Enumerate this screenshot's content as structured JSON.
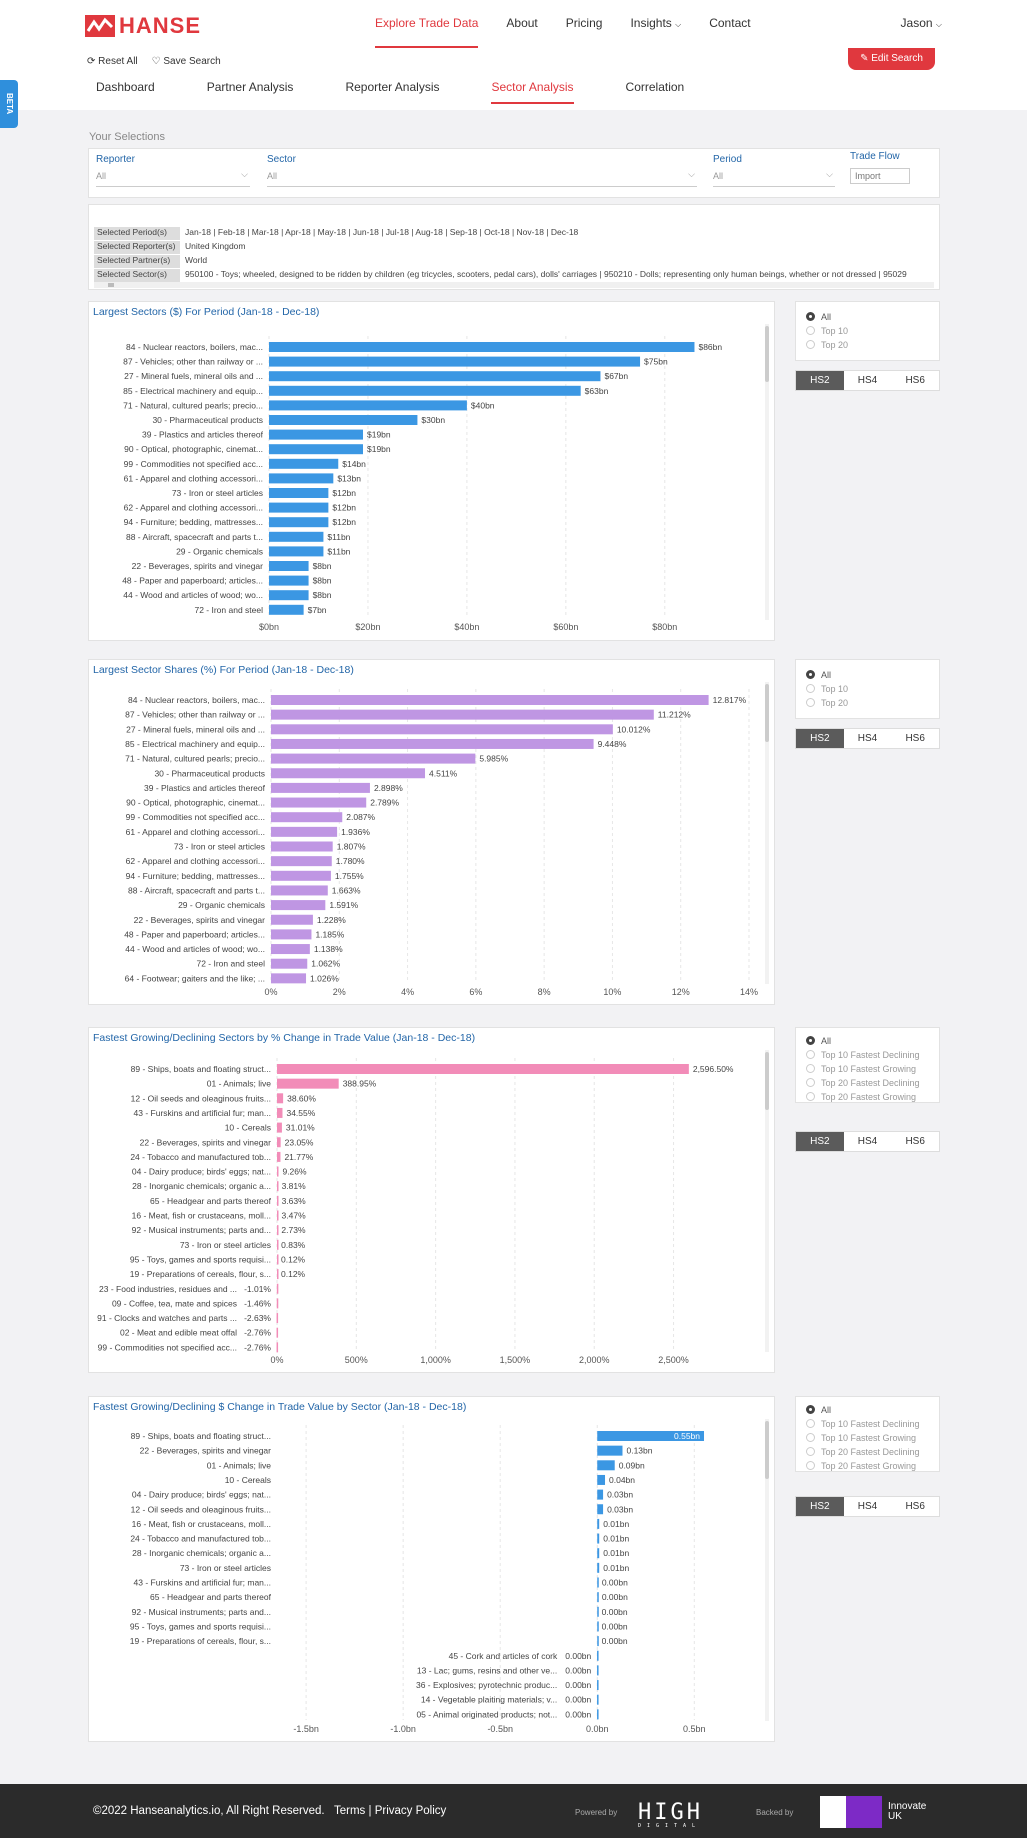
{
  "brand": {
    "name": "HANSE"
  },
  "nav": {
    "items": [
      "Explore Trade Data",
      "About",
      "Pricing",
      "Insights",
      "Contact"
    ],
    "user": "Jason"
  },
  "actions": {
    "reset": "Reset All",
    "save": "Save Search",
    "edit": "Edit Search"
  },
  "tabs": [
    "Dashboard",
    "Partner Analysis",
    "Reporter Analysis",
    "Sector Analysis",
    "Correlation"
  ],
  "beta": "BETA",
  "selections": {
    "title": "Your Selections",
    "reporter_label": "Reporter",
    "reporter_value": "All",
    "sector_label": "Sector",
    "sector_value": "All",
    "period_label": "Period",
    "period_value": "All",
    "flow_label": "Trade Flow",
    "flow_value": "Import"
  },
  "summary": [
    {
      "key": "Selected Period(s)",
      "value": "Jan-18  |  Feb-18  |  Mar-18  |  Apr-18  |  May-18  |  Jun-18  |  Jul-18  |  Aug-18  |  Sep-18  |  Oct-18  |  Nov-18  |  Dec-18"
    },
    {
      "key": "Selected Reporter(s)",
      "value": "United Kingdom"
    },
    {
      "key": "Selected Partner(s)",
      "value": "World"
    },
    {
      "key": "Selected Sector(s)",
      "value": "950100 - Toys; wheeled, designed to be ridden by children (eg tricycles, scooters, pedal cars), dolls' carriages  |  950210 - Dolls; representing only human beings, whether or not dressed  |  95029"
    }
  ],
  "radio_sets": {
    "top": [
      "All",
      "Top 10",
      "Top 20"
    ],
    "growth": [
      "All",
      "Top 10 Fastest Declining",
      "Top 10 Fastest Growing",
      "Top 20 Fastest Declining",
      "Top 20 Fastest Growing"
    ]
  },
  "hs": [
    "HS2",
    "HS4",
    "HS6"
  ],
  "chart_data": [
    {
      "type": "bar",
      "title": "Largest Sectors ($) For Period (Jan-18 - Dec-18)",
      "color": "#3b97e3",
      "xlim": [
        0,
        95
      ],
      "ticks": [
        0,
        20,
        40,
        60,
        80
      ],
      "tick_labels": [
        "$0bn",
        "$20bn",
        "$40bn",
        "$60bn",
        "$80bn"
      ],
      "categories": [
        "84 - Nuclear reactors, boilers, mac...",
        "87 - Vehicles; other than railway or ...",
        "27 - Mineral fuels, mineral oils and ...",
        "85 - Electrical machinery and equip...",
        "71 - Natural, cultured pearls; precio...",
        "30 - Pharmaceutical products",
        "39 - Plastics and articles thereof",
        "90 - Optical, photographic, cinemat...",
        "99 - Commodities not specified acc...",
        "61 - Apparel and clothing accessori...",
        "73 - Iron or steel articles",
        "62 - Apparel and clothing accessori...",
        "94 - Furniture; bedding, mattresses...",
        "88 - Aircraft, spacecraft and parts t...",
        "29 - Organic chemicals",
        "22 - Beverages, spirits and vinegar",
        "48 - Paper and paperboard; articles...",
        "44 - Wood and articles of wood; wo...",
        "72 - Iron and steel"
      ],
      "values": [
        86,
        75,
        67,
        63,
        40,
        30,
        19,
        19,
        14,
        13,
        12,
        12,
        12,
        11,
        11,
        8,
        8,
        8,
        7
      ],
      "value_labels": [
        "$86bn",
        "$75bn",
        "$67bn",
        "$63bn",
        "$40bn",
        "$30bn",
        "$19bn",
        "$19bn",
        "$14bn",
        "$13bn",
        "$12bn",
        "$12bn",
        "$12bn",
        "$11bn",
        "$11bn",
        "$8bn",
        "$8bn",
        "$8bn",
        "$7bn"
      ]
    },
    {
      "type": "bar",
      "title": "Largest Sector Shares (%) For Period (Jan-18 - Dec-18)",
      "color": "#bf96e3",
      "xlim": [
        0,
        14
      ],
      "ticks": [
        0,
        2,
        4,
        6,
        8,
        10,
        12,
        14
      ],
      "tick_labels": [
        "0%",
        "2%",
        "4%",
        "6%",
        "8%",
        "10%",
        "12%",
        "14%"
      ],
      "categories": [
        "84 - Nuclear reactors, boilers, mac...",
        "87 - Vehicles; other than railway or ...",
        "27 - Mineral fuels, mineral oils and ...",
        "85 - Electrical machinery and equip...",
        "71 - Natural, cultured pearls; precio...",
        "30 - Pharmaceutical products",
        "39 - Plastics and articles thereof",
        "90 - Optical, photographic, cinemat...",
        "99 - Commodities not specified acc...",
        "61 - Apparel and clothing accessori...",
        "73 - Iron or steel articles",
        "62 - Apparel and clothing accessori...",
        "94 - Furniture; bedding, mattresses...",
        "88 - Aircraft, spacecraft and parts t...",
        "29 - Organic chemicals",
        "22 - Beverages, spirits and vinegar",
        "48 - Paper and paperboard; articles...",
        "44 - Wood and articles of wood; wo...",
        "72 - Iron and steel",
        "64 - Footwear; gaiters and the like; ..."
      ],
      "values": [
        12.817,
        11.212,
        10.012,
        9.448,
        5.985,
        4.511,
        2.898,
        2.789,
        2.087,
        1.936,
        1.807,
        1.78,
        1.755,
        1.663,
        1.591,
        1.228,
        1.185,
        1.138,
        1.062,
        1.026
      ],
      "value_labels": [
        "12.817%",
        "11.212%",
        "10.012%",
        "9.448%",
        "5.985%",
        "4.511%",
        "2.898%",
        "2.789%",
        "2.087%",
        "1.936%",
        "1.807%",
        "1.780%",
        "1.755%",
        "1.663%",
        "1.591%",
        "1.228%",
        "1.185%",
        "1.138%",
        "1.062%",
        "1.026%"
      ]
    },
    {
      "type": "bar",
      "title": "Fastest Growing/Declining Sectors by % Change in Trade Value (Jan-18 - Dec-18)",
      "color": "#f28cb8",
      "xlim": [
        0,
        2900
      ],
      "ticks": [
        0,
        500,
        1000,
        1500,
        2000,
        2500
      ],
      "tick_labels": [
        "0%",
        "500%",
        "1,000%",
        "1,500%",
        "2,000%",
        "2,500%"
      ],
      "categories": [
        "89 - Ships, boats and floating struct...",
        "01 - Animals; live",
        "12 - Oil seeds and oleaginous fruits...",
        "43 - Furskins and artificial fur; man...",
        "10 - Cereals",
        "22 - Beverages, spirits and vinegar",
        "24 - Tobacco and manufactured tob...",
        "04 - Dairy produce; birds' eggs; nat...",
        "28 - Inorganic chemicals; organic a...",
        "65 - Headgear and parts thereof",
        "16 - Meat, fish or crustaceans, moll...",
        "92 - Musical instruments; parts and...",
        "73 - Iron or steel articles",
        "95 - Toys, games and sports requisi...",
        "19 - Preparations of cereals, flour, s...",
        "23 - Food industries, residues and ...",
        "09 - Coffee, tea, mate and spices",
        "91 - Clocks and watches and parts ...",
        "02 - Meat and edible meat offal",
        "99 - Commodities not specified acc..."
      ],
      "values": [
        2596.5,
        388.95,
        38.6,
        34.55,
        31.01,
        23.05,
        21.77,
        9.26,
        3.81,
        3.63,
        3.47,
        2.73,
        0.83,
        0.12,
        0.12,
        -1.01,
        -1.46,
        -2.63,
        -2.76,
        -2.76
      ],
      "value_labels": [
        "2,596.50%",
        "388.95%",
        "38.60%",
        "34.55%",
        "31.01%",
        "23.05%",
        "21.77%",
        "9.26%",
        "3.81%",
        "3.63%",
        "3.47%",
        "2.73%",
        "0.83%",
        "0.12%",
        "0.12%",
        "-1.01%",
        "-1.46%",
        "-2.63%",
        "-2.76%",
        "-2.76%"
      ]
    },
    {
      "type": "bar",
      "title": "Fastest Growing/Declining $ Change in Trade Value by Sector (Jan-18 - Dec-18)",
      "color": "#3b97e3",
      "xlim": [
        -1.65,
        0.72
      ],
      "ticks": [
        -1.5,
        -1.0,
        -0.5,
        0.0,
        0.5
      ],
      "tick_labels": [
        "-1.5bn",
        "-1.0bn",
        "-0.5bn",
        "0.0bn",
        "0.5bn"
      ],
      "categories": [
        "89 - Ships, boats and floating struct...",
        "22 - Beverages, spirits and vinegar",
        "01 - Animals; live",
        "10 - Cereals",
        "04 - Dairy produce; birds' eggs; nat...",
        "12 - Oil seeds and oleaginous fruits...",
        "16 - Meat, fish or crustaceans, moll...",
        "24 - Tobacco and manufactured tob...",
        "28 - Inorganic chemicals; organic a...",
        "73 - Iron or steel articles",
        "43 - Furskins and artificial fur; man...",
        "65 - Headgear and parts thereof",
        "92 - Musical instruments; parts and...",
        "95 - Toys, games and sports requisi...",
        "19 - Preparations of cereals, flour, s...",
        "45 - Cork and articles of cork",
        "13 - Lac; gums, resins and other ve...",
        "36 - Explosives; pyrotechnic produc...",
        "14 - Vegetable plaiting materials; v...",
        "05 - Animal originated products; not..."
      ],
      "values": [
        0.55,
        0.13,
        0.09,
        0.04,
        0.03,
        0.03,
        0.01,
        0.01,
        0.01,
        0.01,
        0.003,
        0.003,
        0.002,
        0.002,
        0.002,
        -0.001,
        -0.001,
        -0.001,
        -0.001,
        -0.001
      ],
      "value_labels": [
        "0.55bn",
        "0.13bn",
        "0.09bn",
        "0.04bn",
        "0.03bn",
        "0.03bn",
        "0.01bn",
        "0.01bn",
        "0.01bn",
        "0.01bn",
        "0.00bn",
        "0.00bn",
        "0.00bn",
        "0.00bn",
        "0.00bn",
        "0.00bn",
        "0.00bn",
        "0.00bn",
        "0.00bn",
        "0.00bn"
      ]
    }
  ],
  "footer": {
    "copyright": "©2022 Hanseanalytics.io, All Right Reserved.",
    "terms": "Terms",
    "privacy": "Privacy Policy",
    "powered": "Powered by",
    "high": "HIGH",
    "digital": "DIGITAL",
    "backed": "Backed by",
    "innovate_1": "Innovate",
    "innovate_2": "UK"
  }
}
